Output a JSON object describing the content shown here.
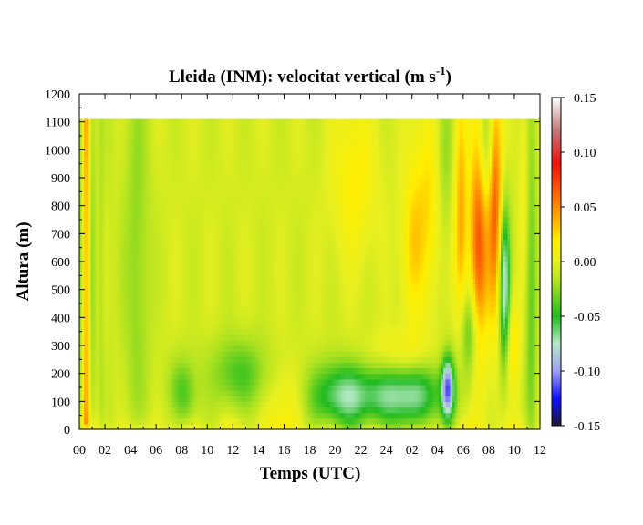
{
  "chart_data": {
    "type": "heatmap",
    "title": "Lleida (INM): velocitat vertical (m s",
    "title_superscript": "-1",
    "title_close": ")",
    "xlabel": "Temps (UTC)",
    "ylabel": "Altura (m)",
    "x_tick_labels": [
      "00",
      "02",
      "04",
      "06",
      "08",
      "10",
      "12",
      "14",
      "16",
      "18",
      "20",
      "22",
      "24",
      "02",
      "04",
      "06",
      "08",
      "10",
      "12"
    ],
    "x_range_hours": [
      0,
      36
    ],
    "y_ticks": [
      0,
      100,
      200,
      300,
      400,
      500,
      600,
      700,
      800,
      900,
      1000,
      1100,
      1200
    ],
    "y_range": [
      0,
      1200
    ],
    "data_top_height": 1110,
    "colorbar": {
      "min": -0.15,
      "max": 0.15,
      "tick_values": [
        0.15,
        0.1,
        0.05,
        0.0,
        -0.05,
        -0.1,
        -0.15
      ],
      "tick_labels": [
        "0.15",
        "0.10",
        "0.05",
        "0.00",
        "-0.05",
        "-0.10",
        "-0.15"
      ],
      "stops": [
        {
          "v": -0.15,
          "color": "#1a1a33"
        },
        {
          "v": -0.125,
          "color": "#1010ff"
        },
        {
          "v": -0.1,
          "color": "#a0a0f0"
        },
        {
          "v": -0.075,
          "color": "#b8e8c8"
        },
        {
          "v": -0.05,
          "color": "#20bb20"
        },
        {
          "v": -0.02,
          "color": "#a8e020"
        },
        {
          "v": 0.0,
          "color": "#e8f020"
        },
        {
          "v": 0.02,
          "color": "#ffee00"
        },
        {
          "v": 0.05,
          "color": "#ff8a00"
        },
        {
          "v": 0.09,
          "color": "#f01010"
        },
        {
          "v": 0.12,
          "color": "#c07a7a"
        },
        {
          "v": 0.15,
          "color": "#ffffff"
        }
      ]
    },
    "grid": false,
    "legend": "colorbar-right"
  }
}
